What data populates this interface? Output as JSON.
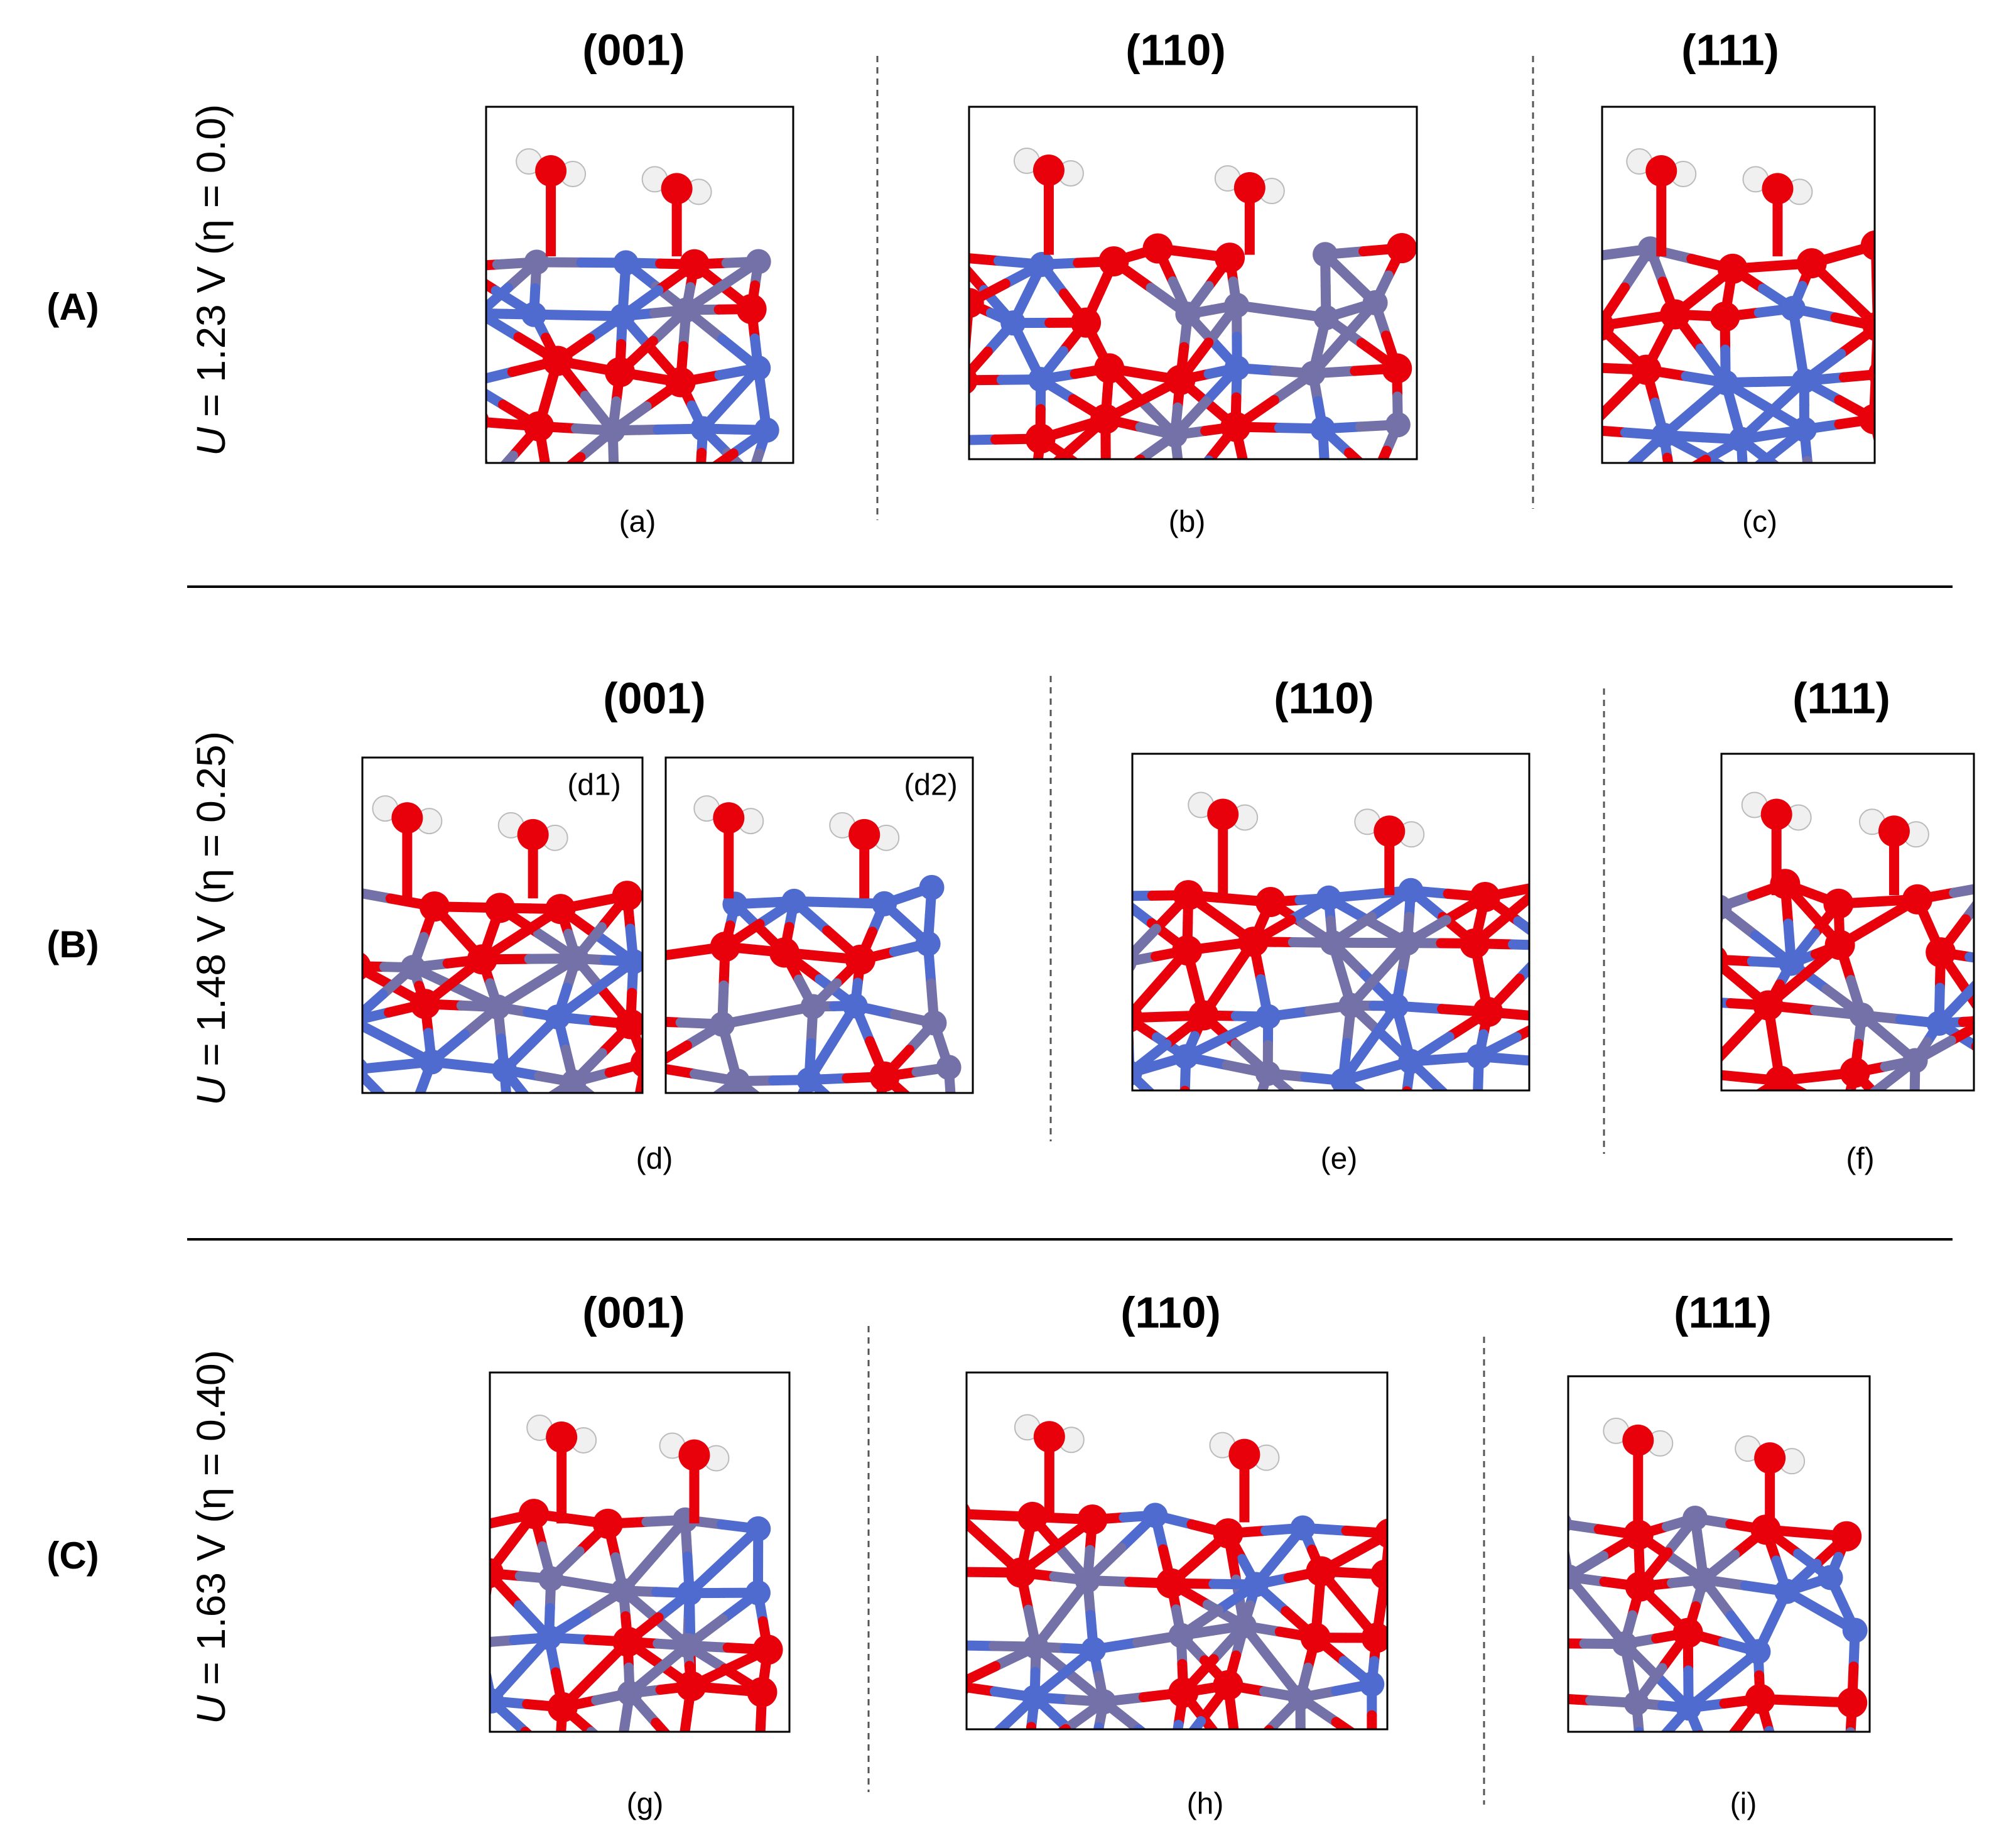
{
  "rows": [
    {
      "label": "(A)",
      "potential": {
        "variable": "U",
        "text": "= 1.23 V (η = 0.0)"
      },
      "panels": [
        {
          "heading": "(001)",
          "caption": "(a)"
        },
        {
          "heading": "(110)",
          "caption": "(b)"
        },
        {
          "heading": "(111)",
          "caption": "(c)"
        }
      ]
    },
    {
      "label": "(B)",
      "potential": {
        "variable": "U",
        "text": "= 1.48 V (η = 0.25)"
      },
      "panels": [
        {
          "heading": "(001)",
          "caption": "(d)",
          "subpanels": [
            "(d1)",
            "(d2)"
          ]
        },
        {
          "heading": "(110)",
          "caption": "(e)"
        },
        {
          "heading": "(111)",
          "caption": "(f)"
        }
      ]
    },
    {
      "label": "(C)",
      "potential": {
        "variable": "U",
        "text": "= 1.63 V (η = 0.40)"
      },
      "panels": [
        {
          "heading": "(001)",
          "caption": "(g)"
        },
        {
          "heading": "(110)",
          "caption": "(h)"
        },
        {
          "heading": "(111)",
          "caption": "(i)"
        }
      ]
    }
  ]
}
